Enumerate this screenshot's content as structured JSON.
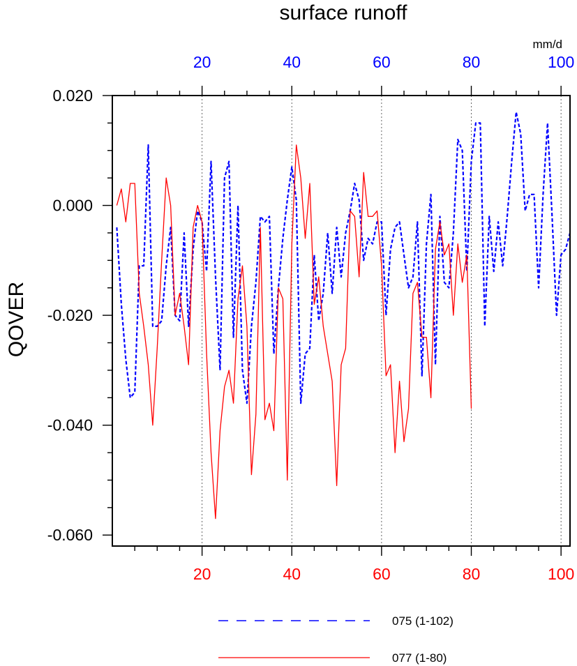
{
  "chart_data": {
    "type": "line",
    "title": "surface runoff",
    "ylabel": "QOVER",
    "units": "mm/d",
    "ylim": [
      -0.062,
      0.02
    ],
    "yticks": [
      0.02,
      0.0,
      -0.02,
      -0.04,
      -0.06
    ],
    "ytick_labels": [
      "0.020",
      "0.000",
      "-0.020",
      "-0.040",
      "-0.060"
    ],
    "top_axis": {
      "xlim": [
        0,
        102
      ],
      "ticks": [
        20,
        40,
        60,
        80,
        100
      ],
      "color": "#0000ff"
    },
    "bottom_axis": {
      "xlim": [
        0,
        102
      ],
      "ticks": [
        20,
        40,
        60,
        80,
        100
      ],
      "color": "#ff0000"
    },
    "grid_x": [
      20,
      40,
      60,
      80,
      100
    ],
    "series": [
      {
        "name": "075 (1-102)",
        "color": "#0000ff",
        "style": "dashed",
        "x_range": [
          1,
          102
        ],
        "values": [
          -0.004,
          -0.018,
          -0.028,
          -0.035,
          -0.034,
          -0.011,
          -0.011,
          0.011,
          -0.022,
          -0.022,
          -0.021,
          -0.011,
          -0.004,
          -0.02,
          -0.021,
          -0.005,
          -0.022,
          -0.008,
          -0.001,
          -0.003,
          -0.012,
          0.008,
          -0.013,
          -0.03,
          0.005,
          0.008,
          -0.024,
          0.0,
          -0.03,
          -0.036,
          -0.022,
          -0.014,
          -0.002,
          -0.003,
          -0.002,
          -0.027,
          -0.015,
          -0.006,
          0.001,
          0.007,
          0.001,
          -0.036,
          -0.027,
          -0.026,
          -0.009,
          -0.021,
          -0.016,
          -0.005,
          -0.016,
          -0.004,
          -0.013,
          -0.005,
          -0.001,
          0.004,
          0.001,
          -0.01,
          -0.006,
          -0.007,
          -0.003,
          -0.003,
          -0.02,
          -0.008,
          -0.004,
          -0.003,
          -0.009,
          -0.015,
          -0.013,
          -0.003,
          -0.031,
          -0.007,
          0.002,
          -0.029,
          -0.002,
          -0.014,
          -0.015,
          -0.005,
          0.012,
          0.01,
          -0.012,
          0.008,
          0.015,
          0.015,
          -0.022,
          -0.002,
          -0.012,
          -0.003,
          -0.011,
          -0.002,
          0.008,
          0.017,
          0.013,
          -0.001,
          0.002,
          0.002,
          -0.015,
          0.002,
          0.015,
          -0.002,
          -0.02,
          -0.009,
          -0.008,
          -0.005
        ]
      },
      {
        "name": "077 (1-80)",
        "color": "#ff0000",
        "style": "solid",
        "x_range": [
          1,
          80
        ],
        "values": [
          0.0,
          0.003,
          -0.003,
          0.004,
          0.004,
          -0.016,
          -0.022,
          -0.029,
          -0.04,
          -0.026,
          -0.01,
          0.005,
          0.0,
          -0.02,
          -0.016,
          -0.022,
          -0.029,
          -0.004,
          0.0,
          -0.003,
          -0.027,
          -0.045,
          -0.057,
          -0.041,
          -0.033,
          -0.03,
          -0.036,
          -0.017,
          -0.011,
          -0.022,
          -0.049,
          -0.038,
          -0.004,
          -0.039,
          -0.036,
          -0.041,
          -0.015,
          -0.017,
          -0.05,
          -0.007,
          0.011,
          0.005,
          -0.006,
          0.004,
          -0.018,
          -0.013,
          -0.022,
          -0.027,
          -0.032,
          -0.051,
          -0.029,
          -0.026,
          -0.001,
          -0.002,
          -0.013,
          0.006,
          -0.002,
          -0.002,
          -0.001,
          -0.011,
          -0.031,
          -0.029,
          -0.045,
          -0.032,
          -0.043,
          -0.037,
          -0.016,
          -0.014,
          -0.024,
          -0.024,
          -0.035,
          -0.008,
          -0.003,
          -0.009,
          -0.007,
          -0.02,
          -0.007,
          -0.014,
          -0.009,
          -0.037
        ]
      }
    ]
  }
}
